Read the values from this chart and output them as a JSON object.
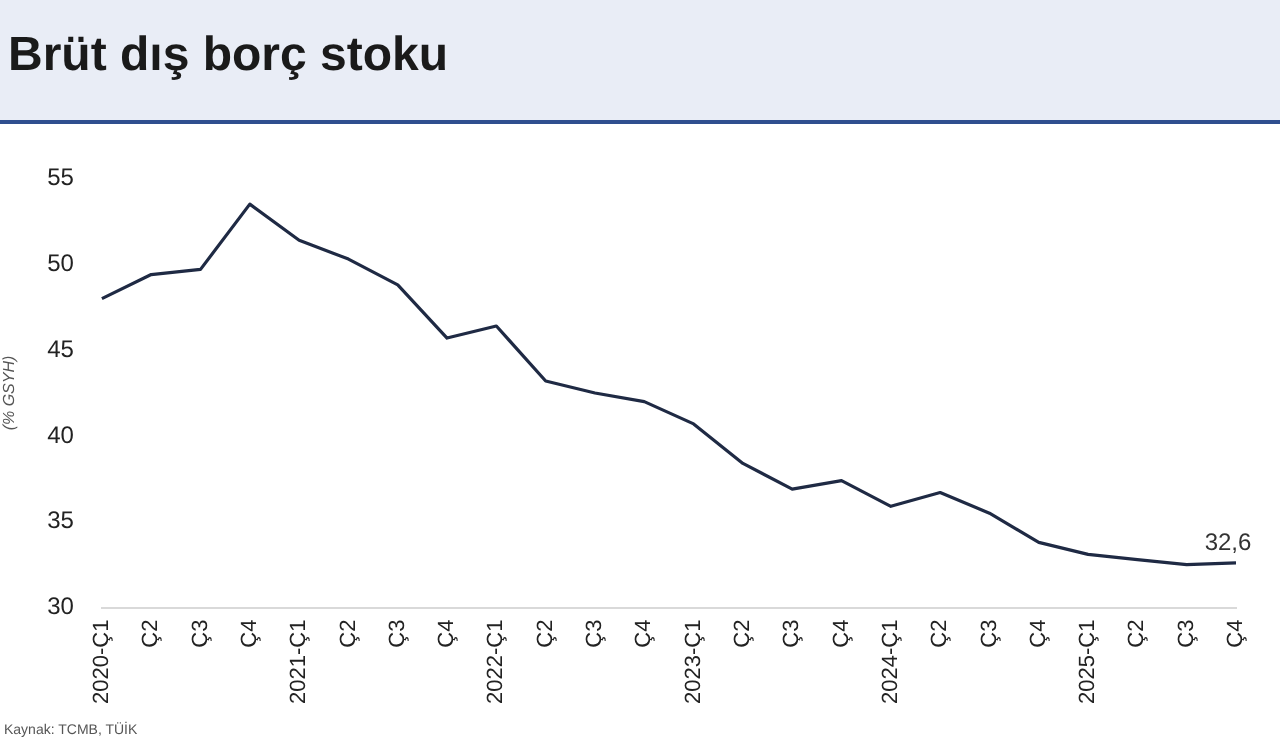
{
  "chart_data": {
    "type": "line",
    "title": "Brüt dış borç stoku",
    "ylabel": "(% GSYH)",
    "categories": [
      "2020-Ç1",
      "Ç2",
      "Ç3",
      "Ç4",
      "2021-Ç1",
      "Ç2",
      "Ç3",
      "Ç4",
      "2022-Ç1",
      "Ç2",
      "Ç3",
      "Ç4",
      "2023-Ç1",
      "Ç2",
      "Ç3",
      "Ç4",
      "2024-Ç1",
      "Ç2",
      "Ç3",
      "Ç4",
      "2025-Ç1",
      "Ç2",
      "Ç3",
      "Ç4"
    ],
    "series": [
      {
        "color": "#1f2a44",
        "values": [
          48.0,
          49.4,
          49.7,
          53.5,
          51.4,
          50.3,
          48.8,
          45.7,
          46.4,
          43.2,
          42.5,
          42.0,
          40.7,
          38.4,
          36.9,
          37.4,
          35.9,
          36.7,
          35.5,
          33.8,
          33.1,
          32.8,
          32.5,
          32.6
        ],
        "value_labels": [
          null,
          null,
          null,
          null,
          null,
          null,
          null,
          null,
          null,
          null,
          null,
          null,
          null,
          null,
          null,
          null,
          null,
          null,
          null,
          null,
          null,
          null,
          null,
          "32,6"
        ]
      }
    ],
    "ylim": [
      30,
      55
    ],
    "yticks": [
      30,
      35,
      40,
      45,
      50,
      55
    ],
    "grid": false,
    "legend": false,
    "marker": "none",
    "line_style": "solid",
    "annotations": [
      "Kaynak: TCMB, TÜİK"
    ]
  }
}
